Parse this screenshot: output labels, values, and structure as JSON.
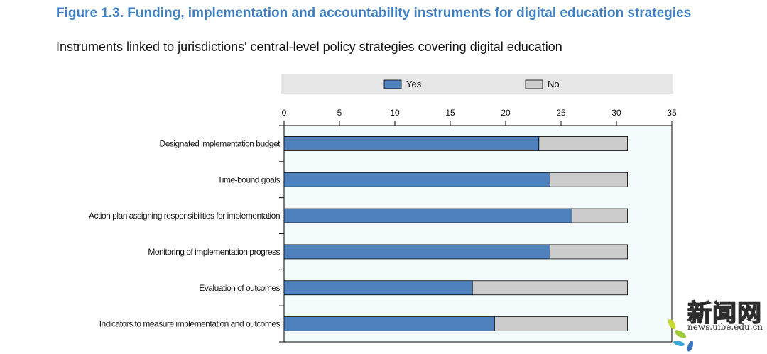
{
  "title": "Figure 1.3. Funding, implementation and accountability instruments for digital education strategies",
  "subtitle": "Instruments linked to jurisdictions' central-level policy strategies covering digital education",
  "watermark": {
    "chars": "新闻网",
    "url": "news.uibe.edu.cn"
  },
  "colors": {
    "yes": "#4f81bd",
    "no": "#cccccc",
    "plot_bg": "#f3fbfd",
    "legend_bg": "#e6e6e6",
    "title": "#3d7fc2"
  },
  "chart_data": {
    "type": "bar",
    "orientation": "horizontal",
    "stacked": true,
    "categories": [
      "Designated implementation budget",
      "Time-bound goals",
      "Action plan assigning responsibilities for implementation",
      "Monitoring of implementation progress",
      "Evaluation of outcomes",
      "Indicators to measure implementation and outcomes"
    ],
    "series": [
      {
        "name": "Yes",
        "values": [
          23,
          24,
          26,
          24,
          17,
          19
        ]
      },
      {
        "name": "No",
        "values": [
          8,
          7,
          5,
          7,
          14,
          12
        ]
      }
    ],
    "xlim": [
      0,
      35
    ],
    "xticks": [
      0,
      5,
      10,
      15,
      20,
      25,
      30,
      35
    ],
    "legend_position": "top",
    "grid": false
  }
}
